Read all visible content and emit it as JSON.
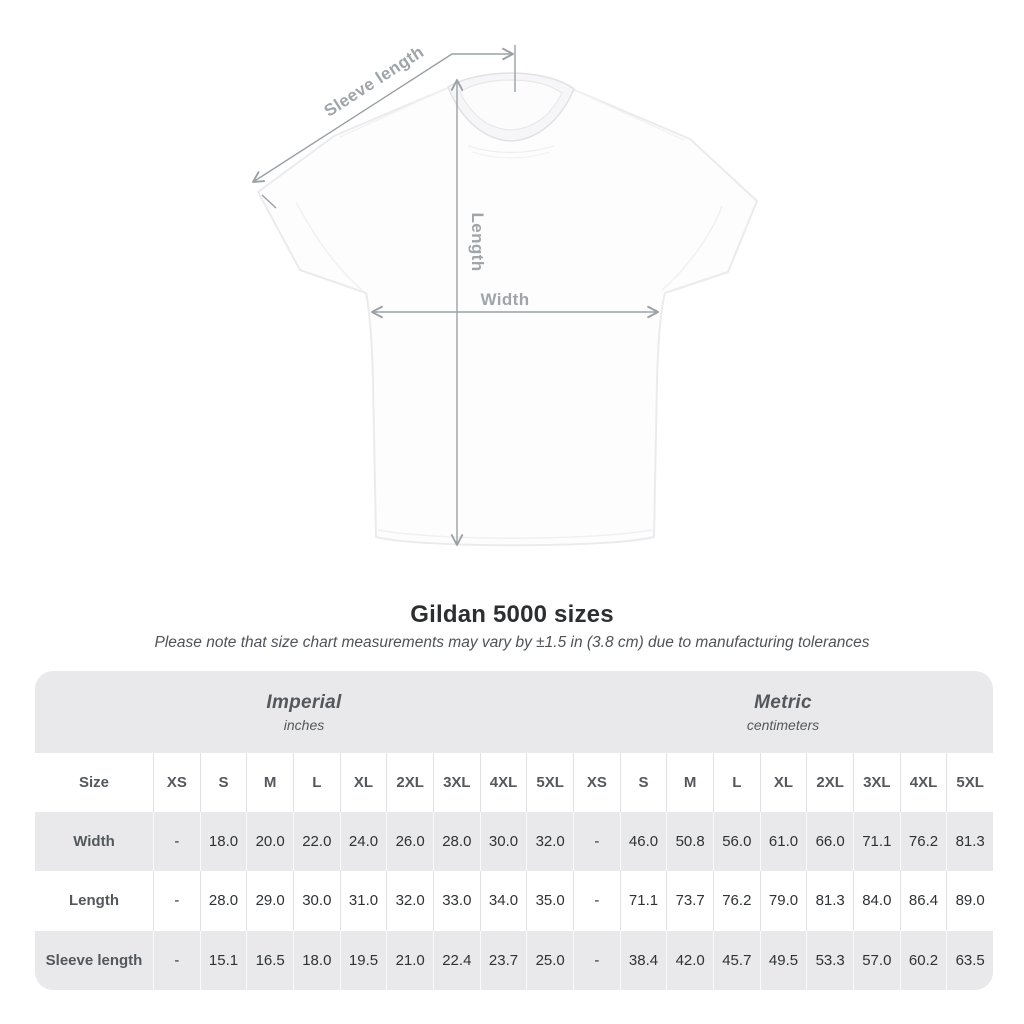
{
  "figure": {
    "labels": {
      "sleeve": "Sleeve length",
      "length": "Length",
      "width": "Width"
    },
    "line_color": "#9aa0a4",
    "label_color": "#a0a5a9"
  },
  "title": "Gildan 5000 sizes",
  "subtitle": "Please note that size chart measurements may vary by ±1.5 in (3.8 cm) due to manufacturing tolerances",
  "table": {
    "unit_headers": [
      {
        "label": "Imperial",
        "sub": "inches"
      },
      {
        "label": "Metric",
        "sub": "centimeters"
      }
    ],
    "size_header_label": "Size",
    "columns": [
      "XS",
      "S",
      "M",
      "L",
      "XL",
      "2XL",
      "3XL",
      "4XL",
      "5XL",
      "XS",
      "S",
      "M",
      "L",
      "XL",
      "2XL",
      "3XL",
      "4XL",
      "5XL"
    ],
    "rows": [
      {
        "label": "Width",
        "values": [
          "-",
          "18.0",
          "20.0",
          "22.0",
          "24.0",
          "26.0",
          "28.0",
          "30.0",
          "32.0",
          "-",
          "46.0",
          "50.8",
          "56.0",
          "61.0",
          "66.0",
          "71.1",
          "76.2",
          "81.3"
        ]
      },
      {
        "label": "Length",
        "values": [
          "-",
          "28.0",
          "29.0",
          "30.0",
          "31.0",
          "32.0",
          "33.0",
          "34.0",
          "35.0",
          "-",
          "71.1",
          "73.7",
          "76.2",
          "79.0",
          "81.3",
          "84.0",
          "86.4",
          "89.0"
        ]
      },
      {
        "label": "Sleeve length",
        "values": [
          "-",
          "15.1",
          "16.5",
          "18.0",
          "19.5",
          "21.0",
          "22.4",
          "23.7",
          "25.0",
          "-",
          "38.4",
          "42.0",
          "45.7",
          "49.5",
          "53.3",
          "57.0",
          "60.2",
          "63.5"
        ]
      }
    ],
    "colors": {
      "band_background": "#e9e9eb",
      "stripe_background": "#e9e9eb",
      "header_text": "#54585c",
      "value_text": "#2f3234"
    }
  }
}
